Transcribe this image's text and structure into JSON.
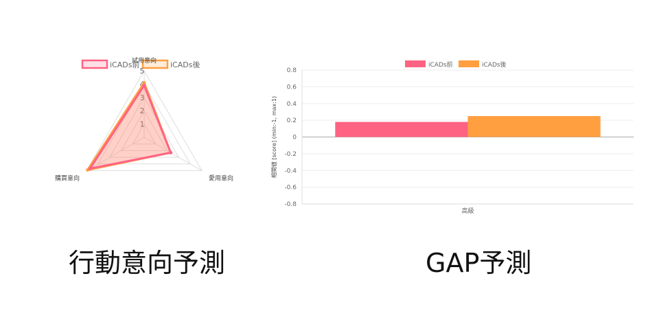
{
  "captions": {
    "radar": "行動意向予測",
    "bar": "GAP予測"
  },
  "colors": {
    "before": "#ff6384",
    "after": "#ff9f40",
    "grid": "#dddddd",
    "zero_line": "#aaaaaa",
    "text": "#666666"
  },
  "chart_data": [
    {
      "type": "radar",
      "title": "",
      "axes": [
        "試用意向",
        "愛用意向",
        "購買意向"
      ],
      "scale_min": 0,
      "scale_max": 5,
      "ticks": [
        "1",
        "2",
        "3",
        "4",
        "5"
      ],
      "legend_position": "top",
      "series": [
        {
          "name": "iCADs前",
          "values": [
            3.9,
            2.3,
            4.7
          ]
        },
        {
          "name": "iCADs後",
          "values": [
            4.1,
            2.3,
            4.9
          ]
        }
      ]
    },
    {
      "type": "bar",
      "title": "",
      "categories": [
        "高級"
      ],
      "ylabel": "相関値 [score]  (min:-1, max:1)",
      "xlabel": "",
      "ylim": [
        -0.8,
        0.8
      ],
      "yticks": [
        "0.8",
        "0.6",
        "0.4",
        "0.2",
        "0",
        "-0.2",
        "-0.4",
        "-0.6",
        "-0.8"
      ],
      "grid": true,
      "legend_position": "top",
      "series": [
        {
          "name": "iCADs前",
          "values": [
            0.18
          ]
        },
        {
          "name": "iCADs後",
          "values": [
            0.25
          ]
        }
      ]
    }
  ]
}
